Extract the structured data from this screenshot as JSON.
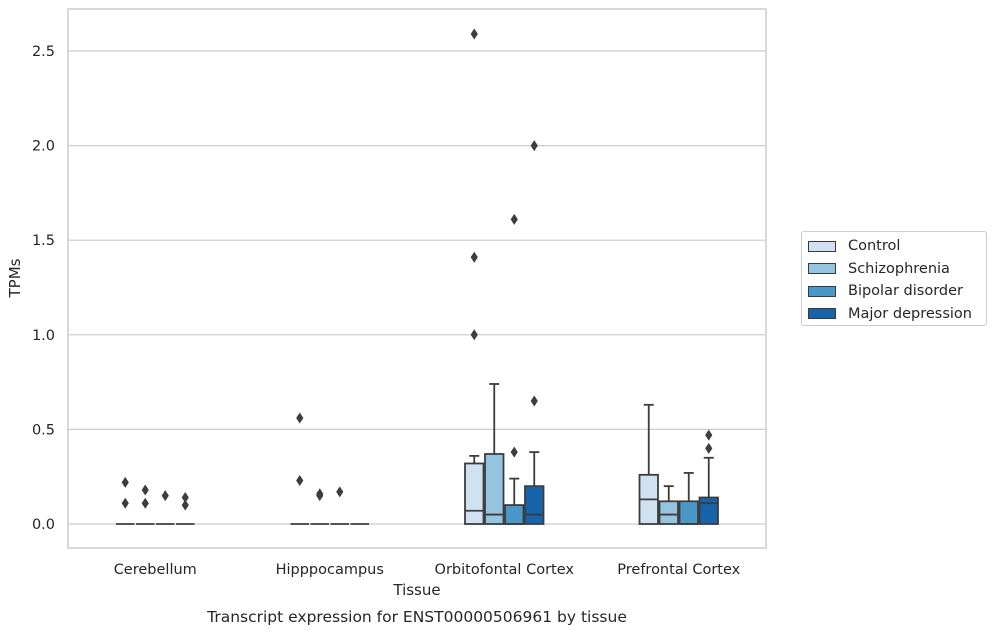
{
  "chart_data": {
    "type": "box",
    "title": "Transcript expression for ENST00000506961 by tissue",
    "xlabel": "Tissue",
    "ylabel": "TPMs",
    "ylim": [
      -0.13,
      2.73
    ],
    "yticks": [
      0.0,
      0.5,
      1.0,
      1.5,
      2.0,
      2.5
    ],
    "ytick_labels": [
      "0.0",
      "0.5",
      "1.0",
      "1.5",
      "2.0",
      "2.5"
    ],
    "categories": [
      "Cerebellum",
      "Hipppocampus",
      "Orbitofontal Cortex",
      "Prefrontal Cortex"
    ],
    "grid": "horizontal",
    "legend_position": "right",
    "series": [
      {
        "name": "Control",
        "color": "#d0e1f2",
        "boxes": [
          {
            "min": 0.0,
            "q1": 0.0,
            "median": 0.0,
            "q3": 0.0,
            "max": 0.0,
            "outliers": [
              0.22,
              0.11
            ]
          },
          {
            "min": 0.0,
            "q1": 0.0,
            "median": 0.0,
            "q3": 0.0,
            "max": 0.0,
            "outliers": [
              0.56,
              0.23
            ]
          },
          {
            "min": 0.0,
            "q1": 0.0,
            "median": 0.07,
            "q3": 0.32,
            "max": 0.36,
            "outliers": [
              2.59,
              1.41,
              1.0
            ]
          },
          {
            "min": 0.0,
            "q1": 0.0,
            "median": 0.13,
            "q3": 0.26,
            "max": 0.63,
            "outliers": []
          }
        ]
      },
      {
        "name": "Schizophrenia",
        "color": "#94c4df",
        "boxes": [
          {
            "min": 0.0,
            "q1": 0.0,
            "median": 0.0,
            "q3": 0.0,
            "max": 0.0,
            "outliers": [
              0.18,
              0.11
            ]
          },
          {
            "min": 0.0,
            "q1": 0.0,
            "median": 0.0,
            "q3": 0.0,
            "max": 0.0,
            "outliers": [
              0.16,
              0.15
            ]
          },
          {
            "min": 0.0,
            "q1": 0.0,
            "median": 0.05,
            "q3": 0.37,
            "max": 0.74,
            "outliers": []
          },
          {
            "min": 0.0,
            "q1": 0.0,
            "median": 0.05,
            "q3": 0.12,
            "max": 0.2,
            "outliers": []
          }
        ]
      },
      {
        "name": "Bipolar disorder",
        "color": "#4a98c9",
        "boxes": [
          {
            "min": 0.0,
            "q1": 0.0,
            "median": 0.0,
            "q3": 0.0,
            "max": 0.0,
            "outliers": [
              0.15
            ]
          },
          {
            "min": 0.0,
            "q1": 0.0,
            "median": 0.0,
            "q3": 0.0,
            "max": 0.0,
            "outliers": [
              0.17
            ]
          },
          {
            "min": 0.0,
            "q1": 0.0,
            "median": 0.0,
            "q3": 0.1,
            "max": 0.24,
            "outliers": [
              1.61,
              0.38
            ]
          },
          {
            "min": 0.0,
            "q1": 0.0,
            "median": 0.0,
            "q3": 0.12,
            "max": 0.27,
            "outliers": []
          }
        ]
      },
      {
        "name": "Major depression",
        "color": "#1764ab",
        "boxes": [
          {
            "min": 0.0,
            "q1": 0.0,
            "median": 0.0,
            "q3": 0.0,
            "max": 0.0,
            "outliers": [
              0.14,
              0.1
            ]
          },
          {
            "min": 0.0,
            "q1": 0.0,
            "median": 0.0,
            "q3": 0.0,
            "max": 0.0,
            "outliers": []
          },
          {
            "min": 0.0,
            "q1": 0.0,
            "median": 0.05,
            "q3": 0.2,
            "max": 0.38,
            "outliers": [
              2.0,
              0.65
            ]
          },
          {
            "min": 0.0,
            "q1": 0.0,
            "median": 0.11,
            "q3": 0.14,
            "max": 0.35,
            "outliers": [
              0.47,
              0.4
            ]
          }
        ]
      }
    ]
  }
}
